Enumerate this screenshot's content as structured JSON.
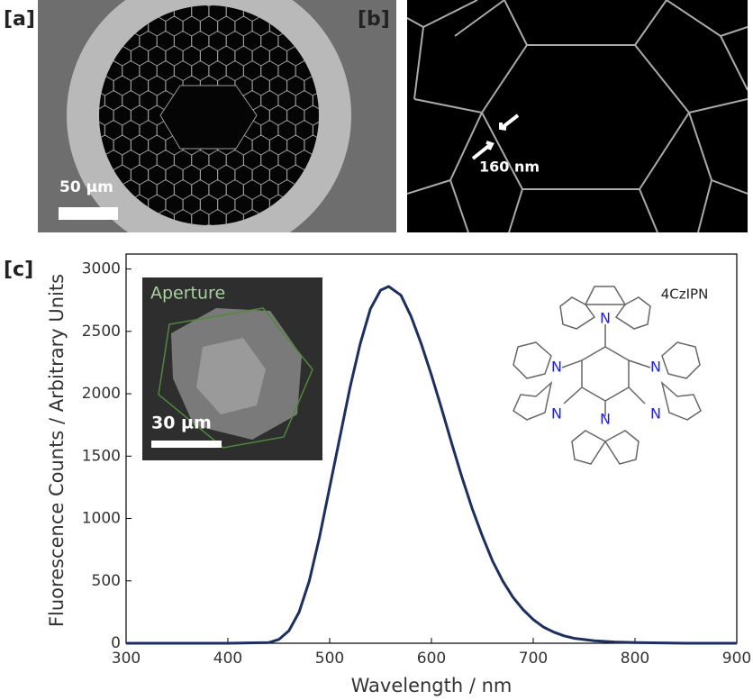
{
  "panels": {
    "a": {
      "label": "[a]",
      "scale_bar": "50 µm"
    },
    "b": {
      "label": "[b]",
      "annotation": "160 nm"
    },
    "c": {
      "label": "[c]"
    }
  },
  "inset": {
    "title": "Aperture",
    "scale_bar": "30 µm"
  },
  "molecule": {
    "name": "4CzIPN",
    "atoms": [
      "N",
      "N",
      "N",
      "N",
      "N",
      "N"
    ]
  },
  "chart_data": {
    "type": "line",
    "xlabel": "Wavelength / nm",
    "ylabel": "Fluorescence Counts / Arbitrary Units",
    "x": [
      300,
      350,
      400,
      440,
      450,
      460,
      470,
      480,
      490,
      500,
      510,
      520,
      530,
      540,
      550,
      558,
      570,
      580,
      590,
      600,
      610,
      620,
      630,
      640,
      650,
      660,
      670,
      680,
      690,
      700,
      710,
      720,
      730,
      740,
      760,
      780,
      800,
      850,
      900
    ],
    "series": [
      {
        "name": "4CzIPN",
        "color": "#1c2f5e",
        "values": [
          0,
          0,
          0,
          5,
          30,
          100,
          250,
          500,
          850,
          1250,
          1650,
          2050,
          2400,
          2680,
          2830,
          2860,
          2790,
          2620,
          2400,
          2150,
          1880,
          1600,
          1330,
          1080,
          860,
          660,
          500,
          370,
          270,
          190,
          130,
          90,
          60,
          40,
          20,
          10,
          5,
          0,
          0
        ]
      }
    ],
    "xlim": [
      300,
      900
    ],
    "ylim": [
      0,
      3120
    ],
    "xticks": [
      300,
      400,
      500,
      600,
      700,
      800,
      900
    ],
    "yticks": [
      0,
      500,
      1000,
      1500,
      2000,
      2500,
      3000
    ]
  }
}
